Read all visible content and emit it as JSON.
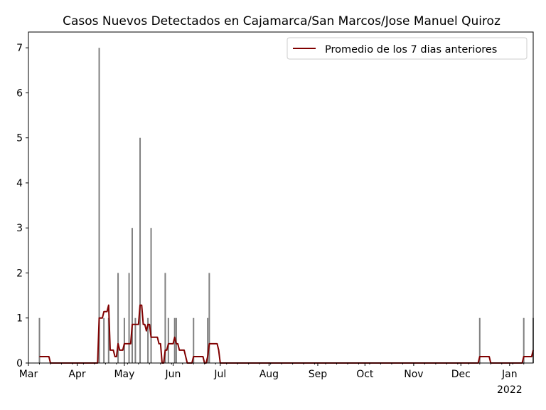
{
  "chart_data": {
    "type": "bar",
    "title": "Casos Nuevos Detectados en Cajamarca/San Marcos/Jose Manuel Quiroz",
    "xlabel": "",
    "ylabel": "",
    "x_range": [
      "2021-03-01",
      "2022-01-16"
    ],
    "ylim": [
      0,
      7.35
    ],
    "yticks": [
      0,
      1,
      2,
      3,
      4,
      5,
      6,
      7
    ],
    "xticks": [
      {
        "date": "2021-03-01",
        "label": "Mar"
      },
      {
        "date": "2021-04-01",
        "label": "Apr"
      },
      {
        "date": "2021-05-01",
        "label": "May"
      },
      {
        "date": "2021-06-01",
        "label": "Jun"
      },
      {
        "date": "2021-07-01",
        "label": "Jul"
      },
      {
        "date": "2021-08-01",
        "label": "Aug"
      },
      {
        "date": "2021-09-01",
        "label": "Sep"
      },
      {
        "date": "2021-10-01",
        "label": "Oct"
      },
      {
        "date": "2021-11-01",
        "label": "Nov"
      },
      {
        "date": "2021-12-01",
        "label": "Dec"
      },
      {
        "date": "2022-01-01",
        "label": "Jan",
        "sublabel": "2022"
      }
    ],
    "bars": [
      {
        "date": "2021-03-08",
        "value": 1
      },
      {
        "date": "2021-04-15",
        "value": 7
      },
      {
        "date": "2021-04-18",
        "value": 1
      },
      {
        "date": "2021-04-21",
        "value": 1
      },
      {
        "date": "2021-04-27",
        "value": 2
      },
      {
        "date": "2021-05-01",
        "value": 1
      },
      {
        "date": "2021-05-04",
        "value": 2
      },
      {
        "date": "2021-05-06",
        "value": 3
      },
      {
        "date": "2021-05-08",
        "value": 1
      },
      {
        "date": "2021-05-11",
        "value": 5
      },
      {
        "date": "2021-05-16",
        "value": 1
      },
      {
        "date": "2021-05-18",
        "value": 3
      },
      {
        "date": "2021-05-27",
        "value": 2
      },
      {
        "date": "2021-05-29",
        "value": 1
      },
      {
        "date": "2021-06-02",
        "value": 1
      },
      {
        "date": "2021-06-03",
        "value": 1
      },
      {
        "date": "2021-06-14",
        "value": 1
      },
      {
        "date": "2021-06-23",
        "value": 1
      },
      {
        "date": "2021-06-24",
        "value": 2
      },
      {
        "date": "2021-12-13",
        "value": 1
      },
      {
        "date": "2022-01-10",
        "value": 1
      },
      {
        "date": "2022-01-16",
        "value": 1
      }
    ],
    "series": [
      {
        "name": "Promedio de los 7 dias anteriores",
        "kind": "rolling_mean_7",
        "color": "#800000"
      }
    ],
    "bar_color": "#808080",
    "legend": {
      "position": "top-right",
      "label": "Promedio de los 7 dias anteriores"
    }
  }
}
